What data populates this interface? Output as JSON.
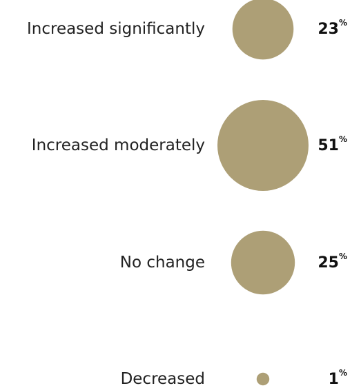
{
  "chart_data": {
    "type": "bubble",
    "categories": [
      "Increased significantly",
      "Increased moderately",
      "No change",
      "Decreased"
    ],
    "values": [
      23,
      51,
      25,
      1
    ],
    "unit": "%",
    "colors": {
      "bubble": "#ad9f76"
    }
  }
}
